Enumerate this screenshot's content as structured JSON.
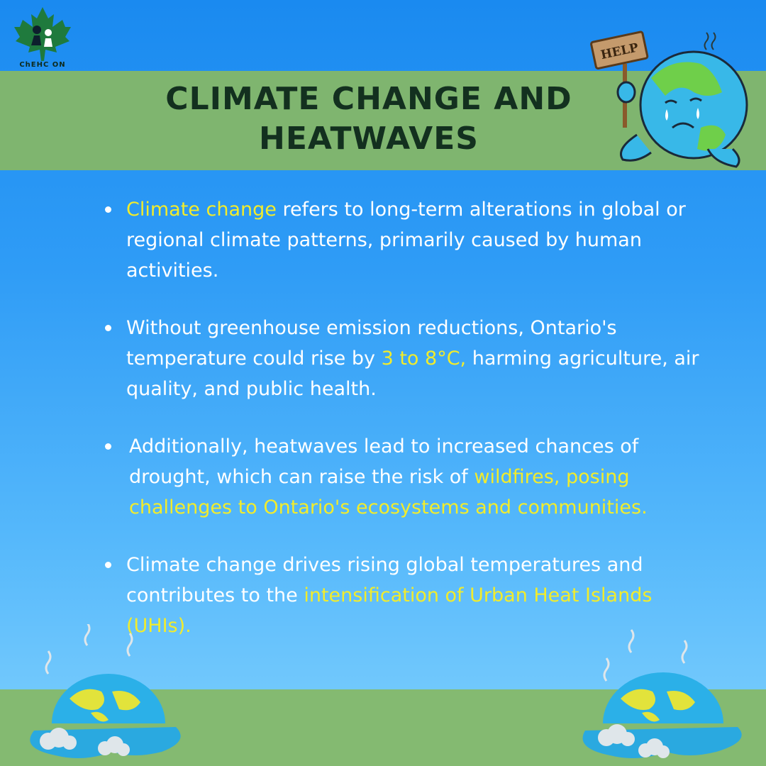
{
  "logo": {
    "text": "ChEHC ON"
  },
  "mascot": {
    "sign_text": "HELP"
  },
  "title": "CLIMATE CHANGE AND HEATWAVES",
  "bullets": [
    {
      "parts": [
        {
          "text": "Climate change",
          "highlight": true
        },
        {
          "text": " refers to long-term alterations in global or regional climate patterns, primarily caused by human activities.",
          "highlight": false
        }
      ]
    },
    {
      "parts": [
        {
          "text": "Without greenhouse emission reductions, Ontario's temperature could rise by ",
          "highlight": false
        },
        {
          "text": "3 to 8°C,",
          "highlight": true
        },
        {
          "text": " harming agriculture, air quality, and public health.",
          "highlight": false
        }
      ]
    },
    {
      "parts": [
        {
          "text": "Additionally, heatwaves lead to increased chances of drought, which can raise the risk of ",
          "highlight": false
        },
        {
          "text": "wildfires, posing challenges to Ontario's ecosystems and communities.",
          "highlight": true
        }
      ]
    },
    {
      "parts": [
        {
          "text": "Climate change drives rising global temperatures and contributes to the ",
          "highlight": false
        },
        {
          "text": "intensification of Urban Heat Islands (UHIs).",
          "highlight": true
        }
      ]
    }
  ],
  "colors": {
    "highlight": "#f2ec2b",
    "title_band": "#7fb56f",
    "title_text": "#13301f",
    "ground": "#84ba71",
    "background_top": "#1a8af0",
    "background_bottom": "#7fd0fd"
  },
  "icons": [
    "maple-leaf-logo-icon",
    "crying-earth-help-sign-icon",
    "melting-earth-icon"
  ]
}
